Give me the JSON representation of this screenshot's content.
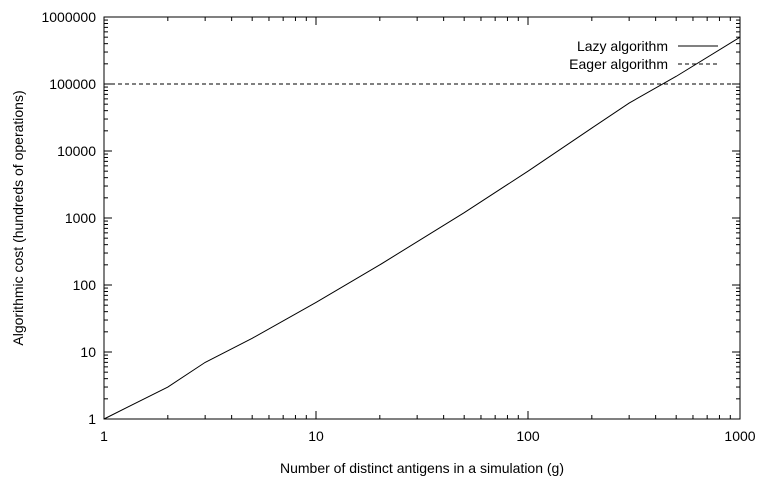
{
  "chart_data": {
    "type": "line",
    "title": "",
    "xlabel": "Number of distinct antigens in a simulation (g)",
    "ylabel": "Algorithmic cost (hundreds of operations)",
    "xscale": "log",
    "yscale": "log",
    "xlim": [
      1,
      1000
    ],
    "ylim": [
      1,
      1000000
    ],
    "xticks": [
      1,
      10,
      100,
      1000
    ],
    "xtick_labels": [
      "1",
      "10",
      "100",
      "1000"
    ],
    "yticks": [
      1,
      10,
      100,
      1000,
      10000,
      100000,
      1000000
    ],
    "ytick_labels": [
      "1",
      "10",
      "100",
      "1000",
      "10000",
      "100000",
      "1000000"
    ],
    "grid": false,
    "legend_position": "top-right",
    "series": [
      {
        "name": "Lazy algorithm",
        "style": "solid",
        "x": [
          1,
          2,
          3,
          5,
          10,
          20,
          50,
          100,
          200,
          300,
          500,
          1000
        ],
        "y": [
          1,
          3,
          7,
          16,
          55,
          200,
          1200,
          5000,
          22000,
          52000,
          130000,
          500000
        ]
      },
      {
        "name": "Eager algorithm",
        "style": "dashed",
        "x": [
          1,
          1000
        ],
        "y": [
          100000,
          100000
        ]
      }
    ]
  }
}
